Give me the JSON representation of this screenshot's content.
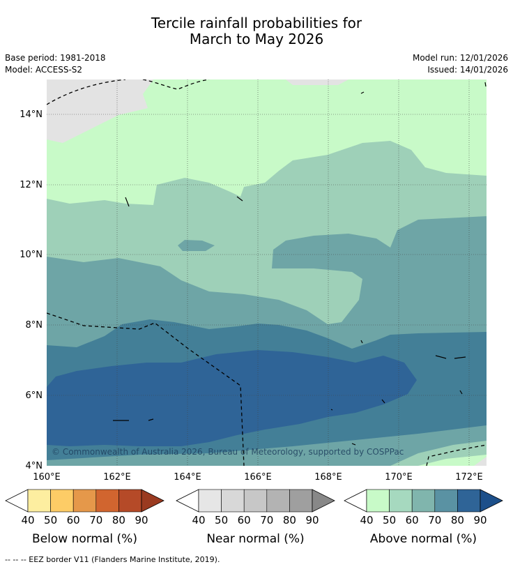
{
  "title": {
    "line1": "Tercile rainfall probabilities for",
    "line2": "March to May 2026"
  },
  "meta": {
    "base_period": "Base period: 1981-2018",
    "model": "Model: ACCESS-S2",
    "model_run": "Model run: 12/01/2026",
    "issued": "Issued: 14/01/2026"
  },
  "map": {
    "lat_labels": [
      "14°N",
      "12°N",
      "10°N",
      "8°N",
      "6°N",
      "4°N"
    ],
    "lon_labels": [
      "160°E",
      "162°E",
      "164°E",
      "166°E",
      "168°E",
      "170°E",
      "172°E"
    ],
    "copyright": "© Commonwealth of Australia 2026, Bureau of Meteorology, supported by COSPPac",
    "colors": {
      "near_normal_grey": "#e3e3e3",
      "above_40": "#c8fac8",
      "above_50": "#9ed0b8",
      "above_60": "#6ea5a6",
      "above_70": "#437f97",
      "above_80": "#2f6497"
    }
  },
  "colorbars": [
    {
      "name": "below",
      "label": "Below normal (%)",
      "ticks": [
        "40",
        "50",
        "60",
        "70",
        "80",
        "90"
      ],
      "colors": [
        "#fdeea0",
        "#fdcc66",
        "#e5984a",
        "#d1652f",
        "#b54a28",
        "#9a3a20"
      ],
      "low_color": "#ffffff"
    },
    {
      "name": "near",
      "label": "Near normal (%)",
      "ticks": [
        "40",
        "50",
        "60",
        "70",
        "80",
        "90"
      ],
      "colors": [
        "#e6e6e6",
        "#d8d8d8",
        "#c7c7c7",
        "#b3b3b3",
        "#9f9f9f",
        "#888888"
      ],
      "low_color": "#ffffff"
    },
    {
      "name": "above",
      "label": "Above normal (%)",
      "ticks": [
        "40",
        "50",
        "60",
        "70",
        "80",
        "90"
      ],
      "colors": [
        "#c8fac8",
        "#a6d9bf",
        "#80b5ad",
        "#5a92a3",
        "#2f6497",
        "#1c4f8a"
      ],
      "low_color": "#ffffff"
    }
  ],
  "footer": "--  --  -- EEZ border V11 (Flanders Marine Institute, 2019)."
}
